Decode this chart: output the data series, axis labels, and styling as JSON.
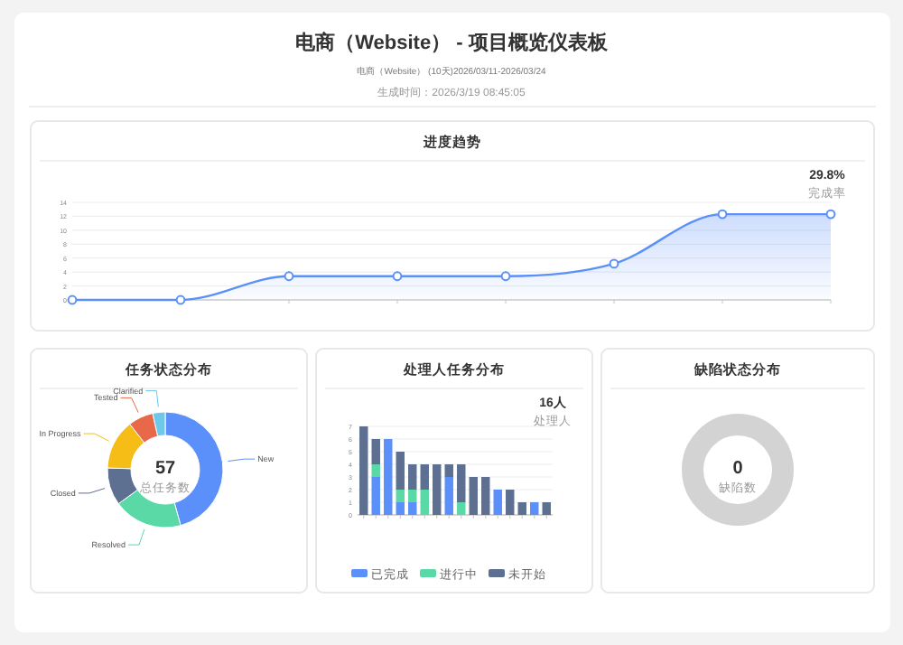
{
  "chart_data": [
    {
      "type": "other",
      "title": "电商（Website） - 项目概览仪表板",
      "subtitle": "电商（Website） (10天)2026/03/11-2026/03/24",
      "annotations": [
        "生成时间：2026/3/19 08:45:05"
      ]
    },
    {
      "type": "area",
      "title": "进度趋势",
      "categories": [
        null,
        null,
        null,
        null,
        null,
        null,
        null,
        null
      ],
      "series": [
        {
          "color": "#5b8ff9",
          "values": [
            0,
            0,
            3.4,
            3.4,
            3.4,
            5.2,
            12.3,
            12.3
          ]
        }
      ],
      "ylim": [
        0,
        14
      ],
      "yticks": [
        0,
        2,
        4,
        6,
        8,
        10,
        12,
        14
      ],
      "grid": "y",
      "marker": "circle",
      "annotations": [
        "29.8%",
        "完成率"
      ]
    },
    {
      "type": "donut",
      "title": "任务状态分布",
      "categories": [
        "New",
        "Resolved",
        "Closed",
        "In Progress",
        "Tested",
        "Clarified"
      ],
      "values": [
        45.7,
        19.3,
        10.5,
        14.0,
        7.0,
        3.5
      ],
      "colors": [
        "#5b8ff9",
        "#5ad8a6",
        "#5d7092",
        "#f6bd16",
        "#e8684a",
        "#6dc8ec"
      ],
      "annotations": [
        "57",
        "总任务数"
      ]
    },
    {
      "type": "bar",
      "title": "处理人任务分布",
      "stacked": true,
      "categories": [
        null,
        null,
        null,
        null,
        null,
        null,
        null,
        null,
        null,
        null,
        null,
        null,
        null,
        null,
        null,
        null
      ],
      "series": [
        {
          "name": "已完成",
          "color": "#5b8ff9",
          "values": [
            0,
            3,
            6,
            1,
            1,
            0,
            0,
            3,
            0,
            0,
            0,
            2,
            0,
            0,
            1,
            0
          ]
        },
        {
          "name": "进行中",
          "color": "#5ad8a6",
          "values": [
            0,
            1,
            0,
            1,
            1,
            2,
            0,
            0,
            1,
            0,
            0,
            0,
            0,
            0,
            0,
            0
          ]
        },
        {
          "name": "未开始",
          "color": "#5d7092",
          "values": [
            7,
            2,
            0,
            3,
            2,
            2,
            4,
            1,
            3,
            3,
            3,
            0,
            2,
            1,
            0,
            1
          ]
        }
      ],
      "ylim": [
        0,
        7
      ],
      "yticks": [
        0,
        1,
        2,
        3,
        4,
        5,
        6,
        7
      ],
      "grid": "y",
      "legend": "bottom",
      "annotations": [
        "16人",
        "处理人"
      ]
    },
    {
      "type": "other",
      "title": "缺陷状态分布",
      "annotations": [
        "0",
        "缺陷数"
      ]
    }
  ]
}
